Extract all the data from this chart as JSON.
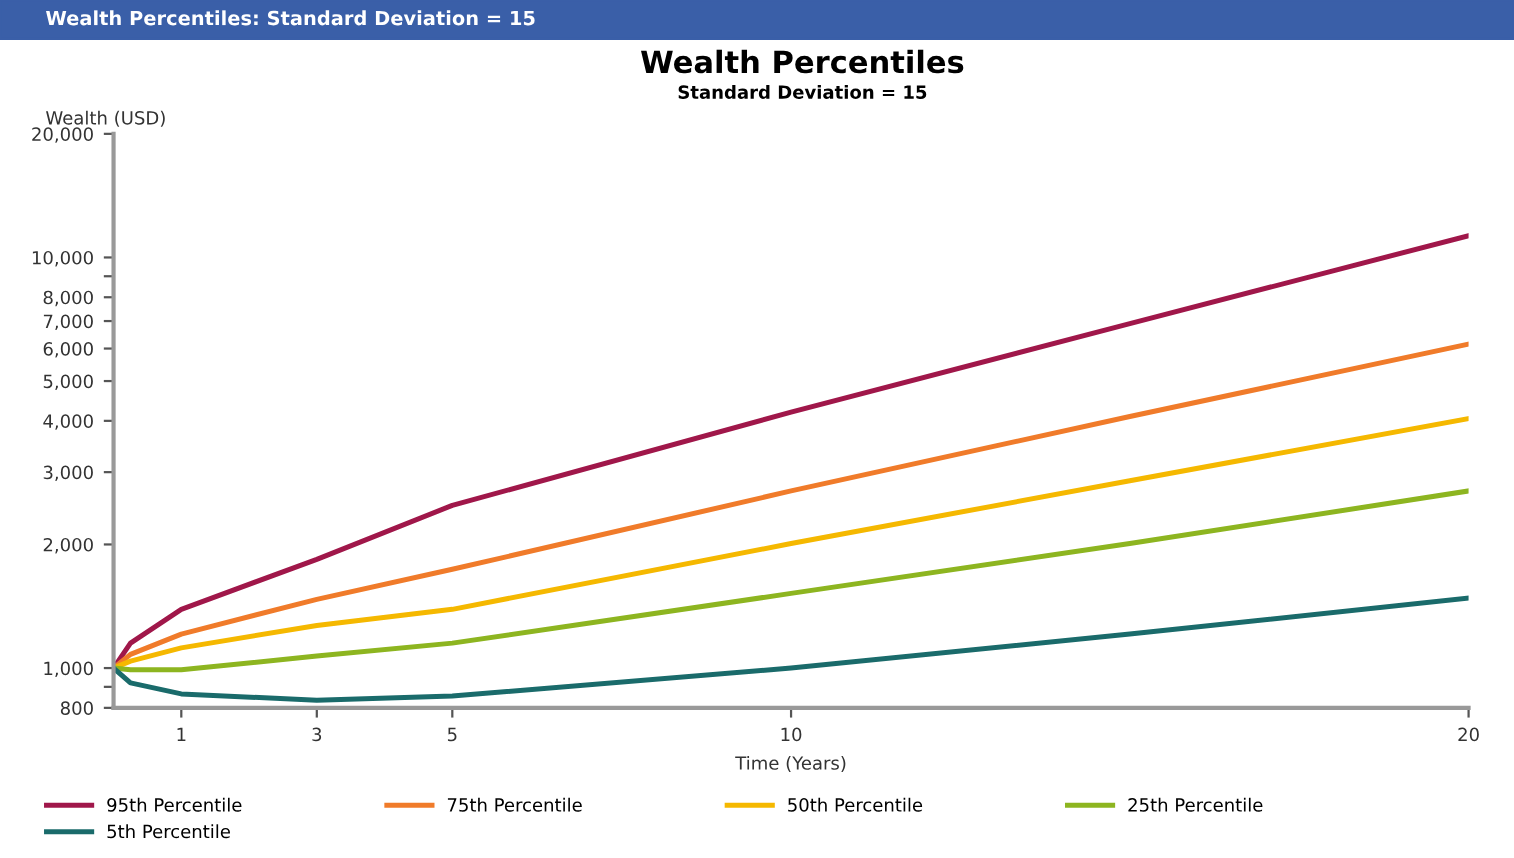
{
  "chart_data": {
    "type": "line",
    "title": "Wealth Percentiles",
    "subtitle": "Standard Deviation = 15",
    "annotations": [
      "Wealth Percentiles: Standard Deviation = 15"
    ],
    "xlabel": "Time (Years)",
    "ylabel": "Wealth (USD)",
    "log": "y",
    "grid": false,
    "legend": "bottom",
    "x": [
      0,
      0.25,
      1,
      3,
      5,
      10,
      15,
      20
    ],
    "xlim": [
      0,
      20
    ],
    "xticks": [
      1,
      3,
      5,
      10,
      20
    ],
    "ylim": [
      800,
      20000
    ],
    "yticks": [
      {
        "value": 800,
        "label": "800"
      },
      {
        "value": 900,
        "label": null
      },
      {
        "value": 1000,
        "label": "1,000"
      },
      {
        "value": 2000,
        "label": "2,000"
      },
      {
        "value": 3000,
        "label": "3,000"
      },
      {
        "value": 4000,
        "label": "4,000"
      },
      {
        "value": 5000,
        "label": "5,000"
      },
      {
        "value": 6000,
        "label": "6,000"
      },
      {
        "value": 7000,
        "label": "7,000"
      },
      {
        "value": 8000,
        "label": "8,000"
      },
      {
        "value": 9000,
        "label": null
      },
      {
        "value": 10000,
        "label": "10,000"
      },
      {
        "value": 20000,
        "label": "20,000"
      }
    ],
    "series": [
      {
        "name": "95th Percentile",
        "color": "#a0174a",
        "values": [
          1000,
          1150,
          1390,
          1840,
          2490,
          4200,
          6900,
          11300
        ]
      },
      {
        "name": "75th Percentile",
        "color": "#f07b2a",
        "values": [
          1000,
          1080,
          1210,
          1470,
          1740,
          2700,
          4100,
          6150
        ]
      },
      {
        "name": "50th Percentile",
        "color": "#f5b800",
        "values": [
          1000,
          1040,
          1120,
          1270,
          1390,
          2010,
          2860,
          4050
        ]
      },
      {
        "name": "25th Percentile",
        "color": "#8db520",
        "values": [
          1000,
          990,
          990,
          1070,
          1150,
          1520,
          2010,
          2700
        ]
      },
      {
        "name": "5th Percentile",
        "color": "#1a6b6b",
        "values": [
          1000,
          920,
          865,
          835,
          855,
          1000,
          1210,
          1480
        ]
      }
    ]
  }
}
